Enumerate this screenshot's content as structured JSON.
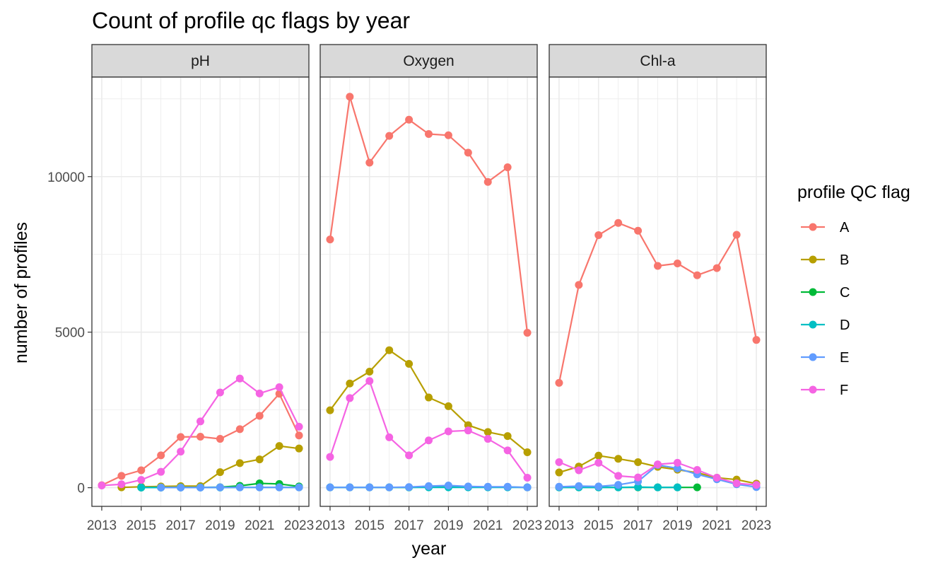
{
  "chart_data": {
    "type": "line",
    "title": "Count of profile qc flags by year",
    "xlabel": "year",
    "ylabel": "number of profiles",
    "x_ticks": [
      2013,
      2015,
      2017,
      2019,
      2021,
      2023
    ],
    "x_tick_labels": [
      "2013",
      "2015",
      "2017",
      "2019",
      "2021",
      "2023"
    ],
    "y_ticks": [
      0,
      5000,
      10000
    ],
    "y_tick_labels": [
      "0",
      "5000",
      "10000"
    ],
    "xlim": [
      2012.5,
      2023.5
    ],
    "ylim": [
      -600,
      13200
    ],
    "grid": true,
    "legend": {
      "title": "profile QC flag",
      "position": "right",
      "entries": [
        {
          "name": "A",
          "color": "#F8766D"
        },
        {
          "name": "B",
          "color": "#B79F00"
        },
        {
          "name": "C",
          "color": "#00BA38"
        },
        {
          "name": "D",
          "color": "#00BFC4"
        },
        {
          "name": "E",
          "color": "#619CFF"
        },
        {
          "name": "F",
          "color": "#F564E3"
        }
      ]
    },
    "facets": [
      {
        "label": "pH",
        "series": [
          {
            "name": "A",
            "x": [
              2013,
              2014,
              2015,
              2016,
              2017,
              2018,
              2019,
              2020,
              2021,
              2022,
              2023
            ],
            "y": [
              80,
              380,
              560,
              1040,
              1630,
              1640,
              1570,
              1880,
              2310,
              3020,
              1680
            ]
          },
          {
            "name": "B",
            "x": [
              2014,
              2015,
              2016,
              2017,
              2018,
              2019,
              2020,
              2021,
              2022,
              2023
            ],
            "y": [
              10,
              30,
              40,
              50,
              50,
              500,
              790,
              910,
              1340,
              1260
            ]
          },
          {
            "name": "C",
            "x": [
              2015,
              2016,
              2017,
              2018,
              2019,
              2020,
              2021,
              2022,
              2023
            ],
            "y": [
              5,
              5,
              10,
              10,
              15,
              60,
              140,
              120,
              40
            ]
          },
          {
            "name": "D",
            "x": [
              2015,
              2016,
              2017,
              2018,
              2019,
              2020,
              2021,
              2022,
              2023
            ],
            "y": [
              5,
              5,
              5,
              5,
              5,
              10,
              10,
              10,
              10
            ]
          },
          {
            "name": "E",
            "x": [
              2016,
              2017,
              2018,
              2019,
              2020,
              2021,
              2022,
              2023
            ],
            "y": [
              5,
              5,
              5,
              10,
              10,
              10,
              10,
              10
            ]
          },
          {
            "name": "F",
            "x": [
              2013,
              2014,
              2015,
              2016,
              2017,
              2018,
              2019,
              2020,
              2021,
              2022,
              2023
            ],
            "y": [
              70,
              110,
              250,
              510,
              1160,
              2130,
              3060,
              3510,
              3030,
              3230,
              1960
            ]
          }
        ]
      },
      {
        "label": "Oxygen",
        "series": [
          {
            "name": "A",
            "x": [
              2013,
              2014,
              2015,
              2016,
              2017,
              2018,
              2019,
              2020,
              2021,
              2022,
              2023
            ],
            "y": [
              7980,
              12570,
              10450,
              11310,
              11830,
              11370,
              11330,
              10770,
              9830,
              10300,
              4980
            ]
          },
          {
            "name": "B",
            "x": [
              2013,
              2014,
              2015,
              2016,
              2017,
              2018,
              2019,
              2020,
              2021,
              2022,
              2023
            ],
            "y": [
              2490,
              3350,
              3730,
              4420,
              3980,
              2900,
              2620,
              2010,
              1790,
              1660,
              1140
            ]
          },
          {
            "name": "C",
            "x": [
              2013,
              2014,
              2015,
              2016,
              2017,
              2018,
              2019,
              2020,
              2021,
              2022,
              2023
            ],
            "y": [
              10,
              10,
              10,
              10,
              10,
              20,
              20,
              20,
              20,
              20,
              10
            ]
          },
          {
            "name": "D",
            "x": [
              2013,
              2014,
              2015,
              2016,
              2017,
              2018,
              2019,
              2020,
              2021,
              2022,
              2023
            ],
            "y": [
              10,
              10,
              10,
              10,
              10,
              10,
              10,
              10,
              10,
              10,
              10
            ]
          },
          {
            "name": "E",
            "x": [
              2013,
              2014,
              2015,
              2016,
              2017,
              2018,
              2019,
              2020,
              2021,
              2022,
              2023
            ],
            "y": [
              10,
              10,
              10,
              10,
              20,
              50,
              70,
              40,
              30,
              30,
              10
            ]
          },
          {
            "name": "F",
            "x": [
              2013,
              2014,
              2015,
              2016,
              2017,
              2018,
              2019,
              2020,
              2021,
              2022,
              2023
            ],
            "y": [
              990,
              2880,
              3430,
              1620,
              1040,
              1520,
              1810,
              1840,
              1570,
              1200,
              320
            ]
          }
        ]
      },
      {
        "label": "Chl-a",
        "series": [
          {
            "name": "A",
            "x": [
              2013,
              2014,
              2015,
              2016,
              2017,
              2018,
              2019,
              2020,
              2021,
              2022,
              2023
            ],
            "y": [
              3370,
              6520,
              8120,
              8510,
              8260,
              7130,
              7210,
              6830,
              7060,
              8130,
              4750
            ]
          },
          {
            "name": "B",
            "x": [
              2013,
              2014,
              2015,
              2016,
              2017,
              2018,
              2019,
              2020,
              2021,
              2022,
              2023
            ],
            "y": [
              490,
              680,
              1030,
              930,
              820,
              670,
              580,
              480,
              320,
              260,
              130
            ]
          },
          {
            "name": "C",
            "x": [
              2013,
              2014,
              2015,
              2016,
              2017,
              2018,
              2019,
              2020
            ],
            "y": [
              10,
              10,
              10,
              10,
              10,
              10,
              10,
              10
            ]
          },
          {
            "name": "D",
            "x": [
              2013,
              2014,
              2015,
              2016,
              2017,
              2018,
              2019
            ],
            "y": [
              10,
              10,
              10,
              10,
              20,
              10,
              10
            ]
          },
          {
            "name": "E",
            "x": [
              2013,
              2014,
              2015,
              2016,
              2017,
              2018,
              2019,
              2020,
              2021,
              2022,
              2023
            ],
            "y": [
              30,
              50,
              40,
              90,
              200,
              730,
              620,
              430,
              270,
              110,
              20
            ]
          },
          {
            "name": "F",
            "x": [
              2013,
              2014,
              2015,
              2016,
              2017,
              2018,
              2019,
              2020,
              2021,
              2022,
              2023
            ],
            "y": [
              820,
              560,
              800,
              380,
              330,
              750,
              800,
              570,
              320,
              140,
              90
            ]
          }
        ]
      }
    ]
  }
}
